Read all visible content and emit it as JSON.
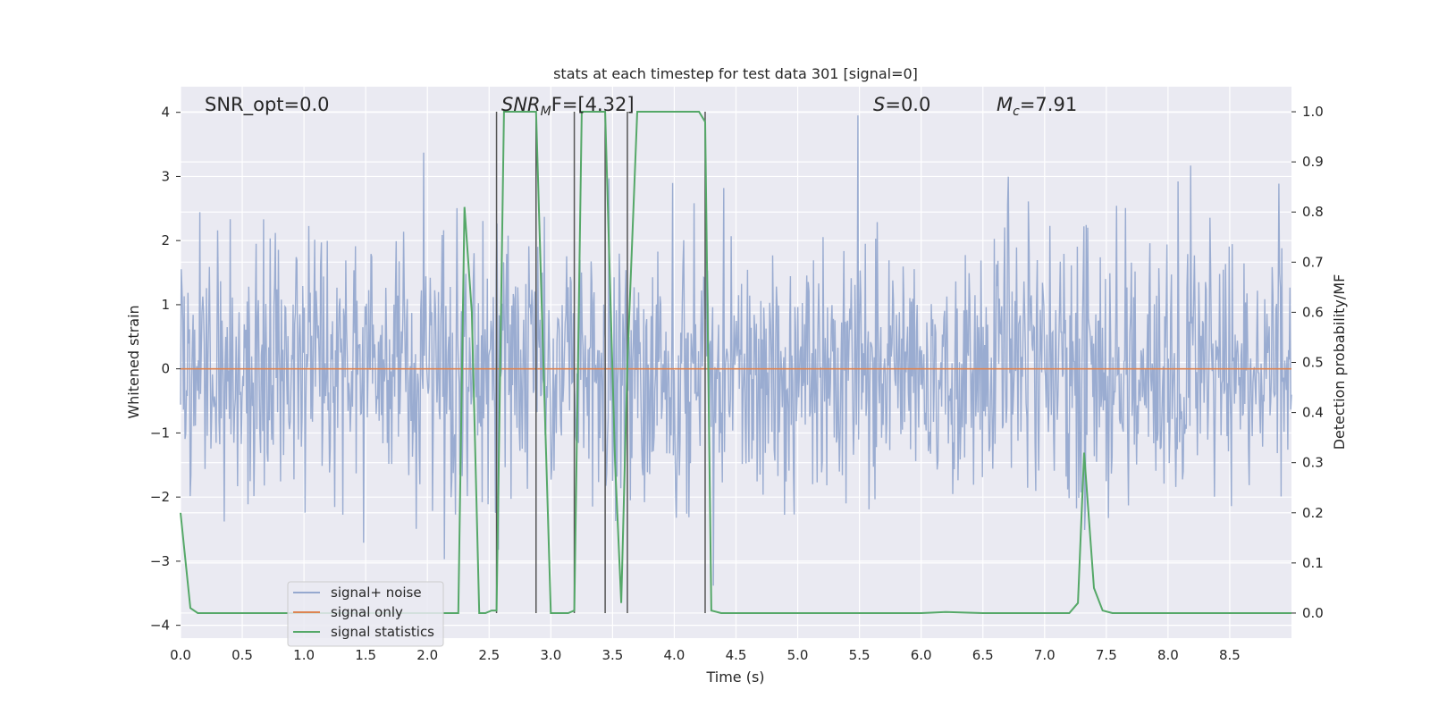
{
  "chart_data": {
    "type": "line",
    "title": "stats at each timestep for test data 301 [signal=0]",
    "xlabel": "Time (s)",
    "ylabel": "Whitened strain",
    "y2label": "Detection probability/MF",
    "xlim": [
      0.0,
      9.0
    ],
    "ylim": [
      -4.2,
      4.4
    ],
    "y2lim": [
      -0.05,
      1.05
    ],
    "xticks": [
      "0.0",
      "0.5",
      "1.0",
      "1.5",
      "2.0",
      "2.5",
      "3.0",
      "3.5",
      "4.0",
      "4.5",
      "5.0",
      "5.5",
      "6.0",
      "6.5",
      "7.0",
      "7.5",
      "8.0",
      "8.5"
    ],
    "yticks": [
      "4",
      "3",
      "2",
      "1",
      "0",
      "−1",
      "−2",
      "−3",
      "−4"
    ],
    "y2ticks": [
      "1.0",
      "0.9",
      "0.8",
      "0.7",
      "0.6",
      "0.5",
      "0.4",
      "0.3",
      "0.2",
      "0.1",
      "0.0"
    ],
    "grid": true,
    "legend_position": "lower-left",
    "annotations": {
      "snr_opt": "SNR_opt=0.0",
      "snr_mf_main": "SNR",
      "snr_mf_sub": "M",
      "snr_mf_rest": "F=[4.32]",
      "s_main": "S",
      "s_rest": "=0.0",
      "mc_main": "M",
      "mc_sub": "c",
      "mc_rest": "=7.91"
    },
    "detection_lines_x": [
      2.56,
      2.88,
      3.19,
      3.44,
      3.62,
      4.25
    ],
    "series": [
      {
        "name": "signal+ noise",
        "color": "#96a9cf",
        "description_stats": {
          "noise_sigma": 1.0,
          "max_abs": 4.0
        }
      },
      {
        "name": "signal only",
        "color": "#dd8452",
        "x": [
          0.0,
          9.0
        ],
        "y": [
          0.0,
          0.0
        ]
      },
      {
        "name": "signal statistics",
        "color": "#55a868",
        "axis": "right",
        "x": [
          0.0,
          0.08,
          0.14,
          0.5,
          1.0,
          1.5,
          2.0,
          2.25,
          2.3,
          2.36,
          2.42,
          2.47,
          2.52,
          2.56,
          2.62,
          2.7,
          2.88,
          2.94,
          3.0,
          3.06,
          3.14,
          3.19,
          3.25,
          3.3,
          3.44,
          3.52,
          3.57,
          3.62,
          3.7,
          3.8,
          4.0,
          4.2,
          4.25,
          4.3,
          4.38,
          5.0,
          6.0,
          6.2,
          6.5,
          7.0,
          7.2,
          7.27,
          7.32,
          7.4,
          7.47,
          7.55,
          8.0,
          8.5,
          9.0
        ],
        "y": [
          0.2,
          0.01,
          0.0,
          0.0,
          0.0,
          0.0,
          0.0,
          0.0,
          0.81,
          0.6,
          0.0,
          0.0,
          0.005,
          0.005,
          1.0,
          1.0,
          1.0,
          0.5,
          0.0,
          0.0,
          0.0,
          0.005,
          1.0,
          1.0,
          1.0,
          0.3,
          0.02,
          0.5,
          1.0,
          1.0,
          1.0,
          1.0,
          0.98,
          0.005,
          0.0,
          0.0,
          0.0,
          0.002,
          0.0,
          0.0,
          0.0,
          0.02,
          0.32,
          0.05,
          0.005,
          0.0,
          0.0,
          0.0,
          0.0
        ]
      }
    ]
  }
}
